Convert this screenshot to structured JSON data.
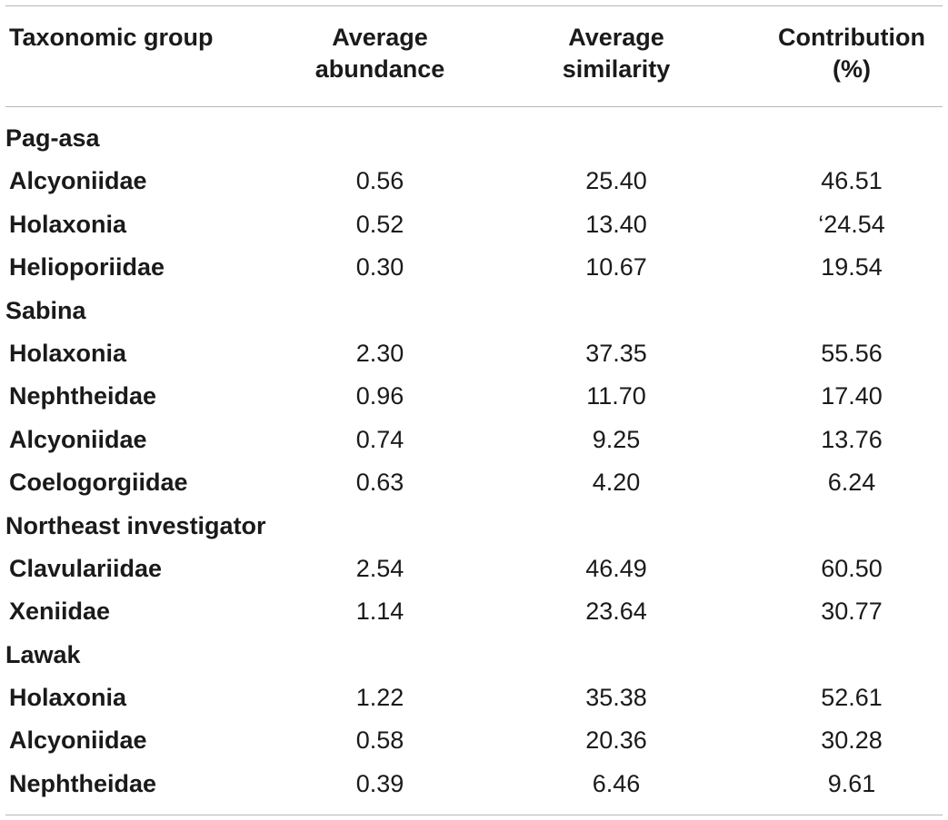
{
  "header": {
    "taxon": "Taxonomic group",
    "abundance_line1": "Average",
    "abundance_line2": "abundance",
    "similarity_line1": "Average",
    "similarity_line2": "similarity",
    "contribution_line1": "Contribution",
    "contribution_line2": "(%)"
  },
  "rows": [
    {
      "type": "group",
      "taxon": "Pag-asa"
    },
    {
      "type": "data",
      "taxon": "Alcyoniidae",
      "abundance": "0.56",
      "similarity": "25.40",
      "contribution": "46.51"
    },
    {
      "type": "data",
      "taxon": "Holaxonia",
      "abundance": "0.52",
      "similarity": "13.40",
      "contribution": "‘24.54"
    },
    {
      "type": "data",
      "taxon": "Helioporiidae",
      "abundance": "0.30",
      "similarity": "10.67",
      "contribution": "19.54"
    },
    {
      "type": "group",
      "taxon": "Sabina"
    },
    {
      "type": "data",
      "taxon": "Holaxonia",
      "abundance": "2.30",
      "similarity": "37.35",
      "contribution": "55.56"
    },
    {
      "type": "data",
      "taxon": "Nephtheidae",
      "abundance": "0.96",
      "similarity": "11.70",
      "contribution": "17.40"
    },
    {
      "type": "data",
      "taxon": "Alcyoniidae",
      "abundance": "0.74",
      "similarity": "9.25",
      "contribution": "13.76"
    },
    {
      "type": "data",
      "taxon": "Coelogorgiidae",
      "abundance": "0.63",
      "similarity": "4.20",
      "contribution": "6.24"
    },
    {
      "type": "group",
      "taxon": "Northeast investigator"
    },
    {
      "type": "data",
      "taxon": "Clavulariidae",
      "abundance": "2.54",
      "similarity": "46.49",
      "contribution": "60.50"
    },
    {
      "type": "data",
      "taxon": "Xeniidae",
      "abundance": "1.14",
      "similarity": "23.64",
      "contribution": "30.77"
    },
    {
      "type": "group",
      "taxon": "Lawak"
    },
    {
      "type": "data",
      "taxon": "Holaxonia",
      "abundance": "1.22",
      "similarity": "35.38",
      "contribution": "52.61"
    },
    {
      "type": "data",
      "taxon": "Alcyoniidae",
      "abundance": "0.58",
      "similarity": "20.36",
      "contribution": "30.28"
    },
    {
      "type": "data",
      "taxon": "Nephtheidae",
      "abundance": "0.39",
      "similarity": "6.46",
      "contribution": "9.61"
    }
  ]
}
